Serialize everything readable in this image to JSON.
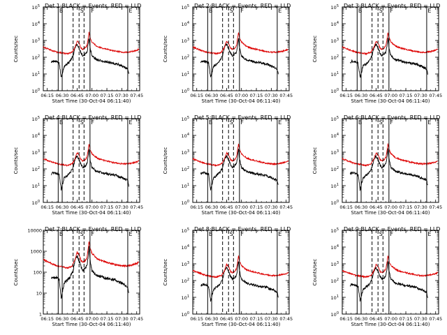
{
  "chart_data": {
    "type": "line",
    "layout": "3x3 grid",
    "y_scale": "log",
    "x_unit": "time (HH:MM)",
    "x_ticks": [
      "06:15",
      "06:30",
      "06:45",
      "07:00",
      "07:15",
      "07:30",
      "07:45"
    ],
    "x_range": [
      "06:11",
      "07:48"
    ],
    "xlabel": "Start Time (30-Oct-04 06:11:40)",
    "ylabel": "Counts/sec",
    "legend_text": "BLACK = Events, RED = LLD",
    "interval_markers": [
      {
        "label": "B",
        "time": "06:26",
        "style": "solid"
      },
      {
        "label": "",
        "time": "06:30",
        "style": "solid"
      },
      {
        "label": "",
        "time": "06:41",
        "style": "dashed"
      },
      {
        "label": "S",
        "time": "06:47",
        "style": "dashed"
      },
      {
        "label": "",
        "time": "06:52",
        "style": "dashed"
      },
      {
        "label": "F",
        "time": "06:58",
        "style": "solid"
      },
      {
        "label": "E",
        "time": "07:36",
        "style": "solid"
      }
    ],
    "panels": [
      {
        "title": "Det 1",
        "ylim": [
          1,
          100000
        ],
        "tick_style": "exp",
        "y_ticks": [
          1,
          10,
          100,
          1000,
          10000,
          100000
        ]
      },
      {
        "title": "Det 2",
        "ylim": [
          1,
          100000
        ],
        "tick_style": "exp",
        "y_ticks": [
          1,
          10,
          100,
          1000,
          10000,
          100000
        ]
      },
      {
        "title": "Det 3",
        "ylim": [
          1,
          100000
        ],
        "tick_style": "exp",
        "y_ticks": [
          1,
          10,
          100,
          1000,
          10000,
          100000
        ]
      },
      {
        "title": "Det 4",
        "ylim": [
          1,
          100000
        ],
        "tick_style": "exp",
        "y_ticks": [
          1,
          10,
          100,
          1000,
          10000,
          100000
        ]
      },
      {
        "title": "Det 5",
        "ylim": [
          1,
          100000
        ],
        "tick_style": "exp",
        "y_ticks": [
          1,
          10,
          100,
          1000,
          10000,
          100000
        ]
      },
      {
        "title": "Det 6",
        "ylim": [
          1,
          100000
        ],
        "tick_style": "exp",
        "y_ticks": [
          1,
          10,
          100,
          1000,
          10000,
          100000
        ]
      },
      {
        "title": "Det 7",
        "ylim": [
          1,
          10000
        ],
        "tick_style": "plain",
        "y_ticks": [
          1,
          10,
          100,
          1000,
          10000
        ],
        "y_tick_labels": [
          "1",
          "10",
          "100",
          "1000",
          "10000"
        ]
      },
      {
        "title": "Det 8",
        "ylim": [
          1,
          100000
        ],
        "tick_style": "exp",
        "y_ticks": [
          1,
          10,
          100,
          1000,
          10000,
          100000
        ]
      },
      {
        "title": "Det 9",
        "ylim": [
          1,
          100000
        ],
        "tick_style": "exp",
        "y_ticks": [
          1,
          10,
          100,
          1000,
          10000,
          100000
        ]
      }
    ],
    "series": [
      {
        "name": "Events",
        "color": "#000000",
        "shape_times": [
          "06:19",
          "06:21",
          "06:24",
          "06:27",
          "06:29",
          "06:32",
          "06:35",
          "06:38",
          "06:41",
          "06:43",
          "06:45",
          "06:47",
          "06:49",
          "06:51",
          "06:53",
          "06:55",
          "06:56",
          "06:57",
          "06:58",
          "07:00",
          "07:05",
          "07:10",
          "07:15",
          "07:20",
          "07:25",
          "07:30",
          "07:33",
          "07:36",
          "07:37"
        ],
        "shape_values": [
          50,
          60,
          55,
          45,
          6,
          30,
          40,
          60,
          120,
          400,
          600,
          350,
          180,
          120,
          150,
          200,
          500,
          1500,
          400,
          120,
          70,
          60,
          50,
          45,
          40,
          30,
          25,
          20,
          10
        ]
      },
      {
        "name": "LLD",
        "color": "#dd0000",
        "shape_times": [
          "06:11",
          "06:20",
          "06:25",
          "06:30",
          "06:35",
          "06:40",
          "06:43",
          "06:45",
          "06:47",
          "06:49",
          "06:51",
          "06:53",
          "06:55",
          "06:56",
          "06:57",
          "06:58",
          "07:00",
          "07:05",
          "07:10",
          "07:15",
          "07:20",
          "07:25",
          "07:30",
          "07:35",
          "07:40",
          "07:45",
          "07:47"
        ],
        "shape_values": [
          400,
          250,
          200,
          180,
          160,
          200,
          400,
          900,
          700,
          350,
          300,
          350,
          500,
          1200,
          3000,
          1500,
          800,
          450,
          350,
          300,
          250,
          220,
          200,
          200,
          220,
          260,
          300
        ]
      }
    ]
  }
}
